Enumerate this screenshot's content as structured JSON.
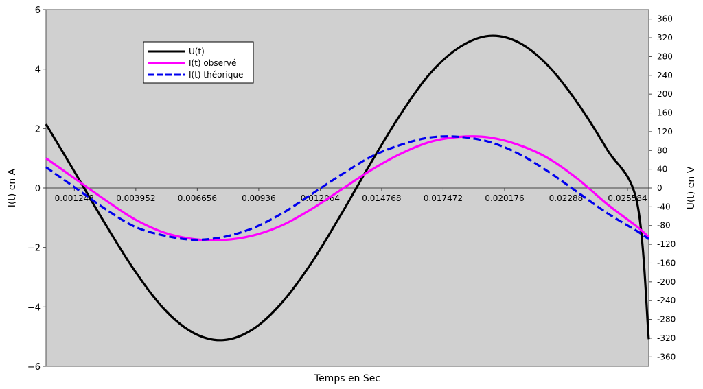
{
  "chart_data": {
    "type": "line",
    "title": "",
    "xlabel": "Temps en Sec",
    "ylabel_left": "I(t) en A",
    "ylabel_right": "U(t) en V",
    "xlim": [
      0,
      0.02652
    ],
    "ylim_left": [
      -6,
      6
    ],
    "ylim_right": [
      -380,
      380
    ],
    "left_ticks": [
      {
        "v": 6,
        "label": "6"
      },
      {
        "v": 4,
        "label": "4"
      },
      {
        "v": 2,
        "label": "2"
      },
      {
        "v": 0,
        "label": "0"
      },
      {
        "v": -2,
        "label": "−2"
      },
      {
        "v": -4,
        "label": "−4"
      },
      {
        "v": -6,
        "label": "−6"
      }
    ],
    "right_ticks": [
      {
        "v": 360,
        "label": "360"
      },
      {
        "v": 320,
        "label": "320"
      },
      {
        "v": 280,
        "label": "280"
      },
      {
        "v": 240,
        "label": "240"
      },
      {
        "v": 200,
        "label": "200"
      },
      {
        "v": 160,
        "label": "160"
      },
      {
        "v": 120,
        "label": "120"
      },
      {
        "v": 80,
        "label": "80"
      },
      {
        "v": 40,
        "label": "40"
      },
      {
        "v": 0,
        "label": "0"
      },
      {
        "v": -40,
        "label": "-40"
      },
      {
        "v": -80,
        "label": "-80"
      },
      {
        "v": -120,
        "label": "-120"
      },
      {
        "v": -160,
        "label": "-160"
      },
      {
        "v": -200,
        "label": "-200"
      },
      {
        "v": -240,
        "label": "-240"
      },
      {
        "v": -280,
        "label": "-280"
      },
      {
        "v": -320,
        "label": "-320"
      },
      {
        "v": -360,
        "label": "-360"
      }
    ],
    "x_ticks": [
      {
        "v": 0.001248,
        "label": "0.001248"
      },
      {
        "v": 0.003952,
        "label": "0.003952"
      },
      {
        "v": 0.006656,
        "label": "0.006656"
      },
      {
        "v": 0.00936,
        "label": "0.00936"
      },
      {
        "v": 0.012064,
        "label": "0.012064"
      },
      {
        "v": 0.014768,
        "label": "0.014768"
      },
      {
        "v": 0.017472,
        "label": "0.017472"
      },
      {
        "v": 0.020176,
        "label": "0.020176"
      },
      {
        "v": 0.02288,
        "label": "0.02288"
      },
      {
        "v": 0.025584,
        "label": "0.025584"
      }
    ],
    "grid": false,
    "legend_position": "top-left",
    "series": [
      {
        "name": "U(t)",
        "axis": "right",
        "color": "#000000",
        "dash": "solid",
        "x": [
          0,
          0.0013,
          0.0026,
          0.0039,
          0.0052,
          0.0065,
          0.0078,
          0.0091,
          0.0104,
          0.0117,
          0.013,
          0.0143,
          0.0156,
          0.0169,
          0.0182,
          0.0195,
          0.0208,
          0.0221,
          0.0234,
          0.0247,
          0.026,
          0.02652
        ],
        "y": [
          136,
          31,
          -76,
          -176,
          -258,
          -309,
          -324,
          -301,
          -243,
          -158,
          -55,
          54,
          157,
          244,
          300,
          324,
          310,
          260,
          180,
          81,
          -30,
          -322
        ]
      },
      {
        "name": "I(t) observé",
        "axis": "left",
        "color": "#ff00ff",
        "dash": "solid",
        "x": [
          0,
          0.0013,
          0.0026,
          0.0039,
          0.0052,
          0.0065,
          0.0078,
          0.0091,
          0.0104,
          0.0117,
          0.013,
          0.0143,
          0.0156,
          0.0169,
          0.0182,
          0.0195,
          0.0208,
          0.0221,
          0.0234,
          0.0247,
          0.026,
          0.02652
        ],
        "y": [
          1.0,
          0.3,
          -0.4,
          -1.05,
          -1.5,
          -1.72,
          -1.75,
          -1.6,
          -1.25,
          -0.7,
          -0.05,
          0.6,
          1.15,
          1.55,
          1.72,
          1.7,
          1.45,
          1.0,
          0.3,
          -0.55,
          -1.3,
          -1.65
        ]
      },
      {
        "name": "I(t) théorique",
        "axis": "left",
        "color": "#0000ee",
        "dash": "dashed",
        "x": [
          0,
          0.0013,
          0.0026,
          0.0039,
          0.0052,
          0.0065,
          0.0078,
          0.0091,
          0.0104,
          0.0117,
          0.013,
          0.0143,
          0.0156,
          0.0169,
          0.0182,
          0.0195,
          0.0208,
          0.0221,
          0.0234,
          0.0247,
          0.026,
          0.02652
        ],
        "y": [
          0.7,
          0.0,
          -0.7,
          -1.3,
          -1.6,
          -1.74,
          -1.65,
          -1.35,
          -0.85,
          -0.2,
          0.45,
          1.05,
          1.45,
          1.7,
          1.72,
          1.55,
          1.15,
          0.55,
          -0.15,
          -0.85,
          -1.45,
          -1.72
        ]
      }
    ]
  }
}
